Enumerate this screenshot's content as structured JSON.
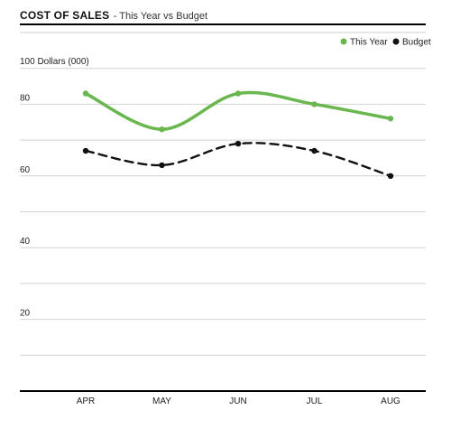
{
  "header": {
    "title": "COST OF SALES",
    "subtitle": "- This Year vs Budget"
  },
  "chart_data": {
    "type": "line",
    "title": "COST OF SALES",
    "subtitle": "- This Year vs Budget",
    "ylabel": "100 Dollars (000)",
    "categories": [
      "APR",
      "MAY",
      "JUN",
      "JUL",
      "AUG"
    ],
    "ylim": [
      0,
      100
    ],
    "yticks": [
      20,
      40,
      60,
      80
    ],
    "grid": true,
    "legend_position": "top-right",
    "series": [
      {
        "name": "This Year",
        "values": [
          83,
          73,
          83,
          80,
          76
        ],
        "color": "#6ab74f",
        "style": "solid"
      },
      {
        "name": "Budget",
        "values": [
          67,
          63,
          69,
          67,
          60
        ],
        "color": "#111111",
        "style": "dashed"
      }
    ]
  }
}
